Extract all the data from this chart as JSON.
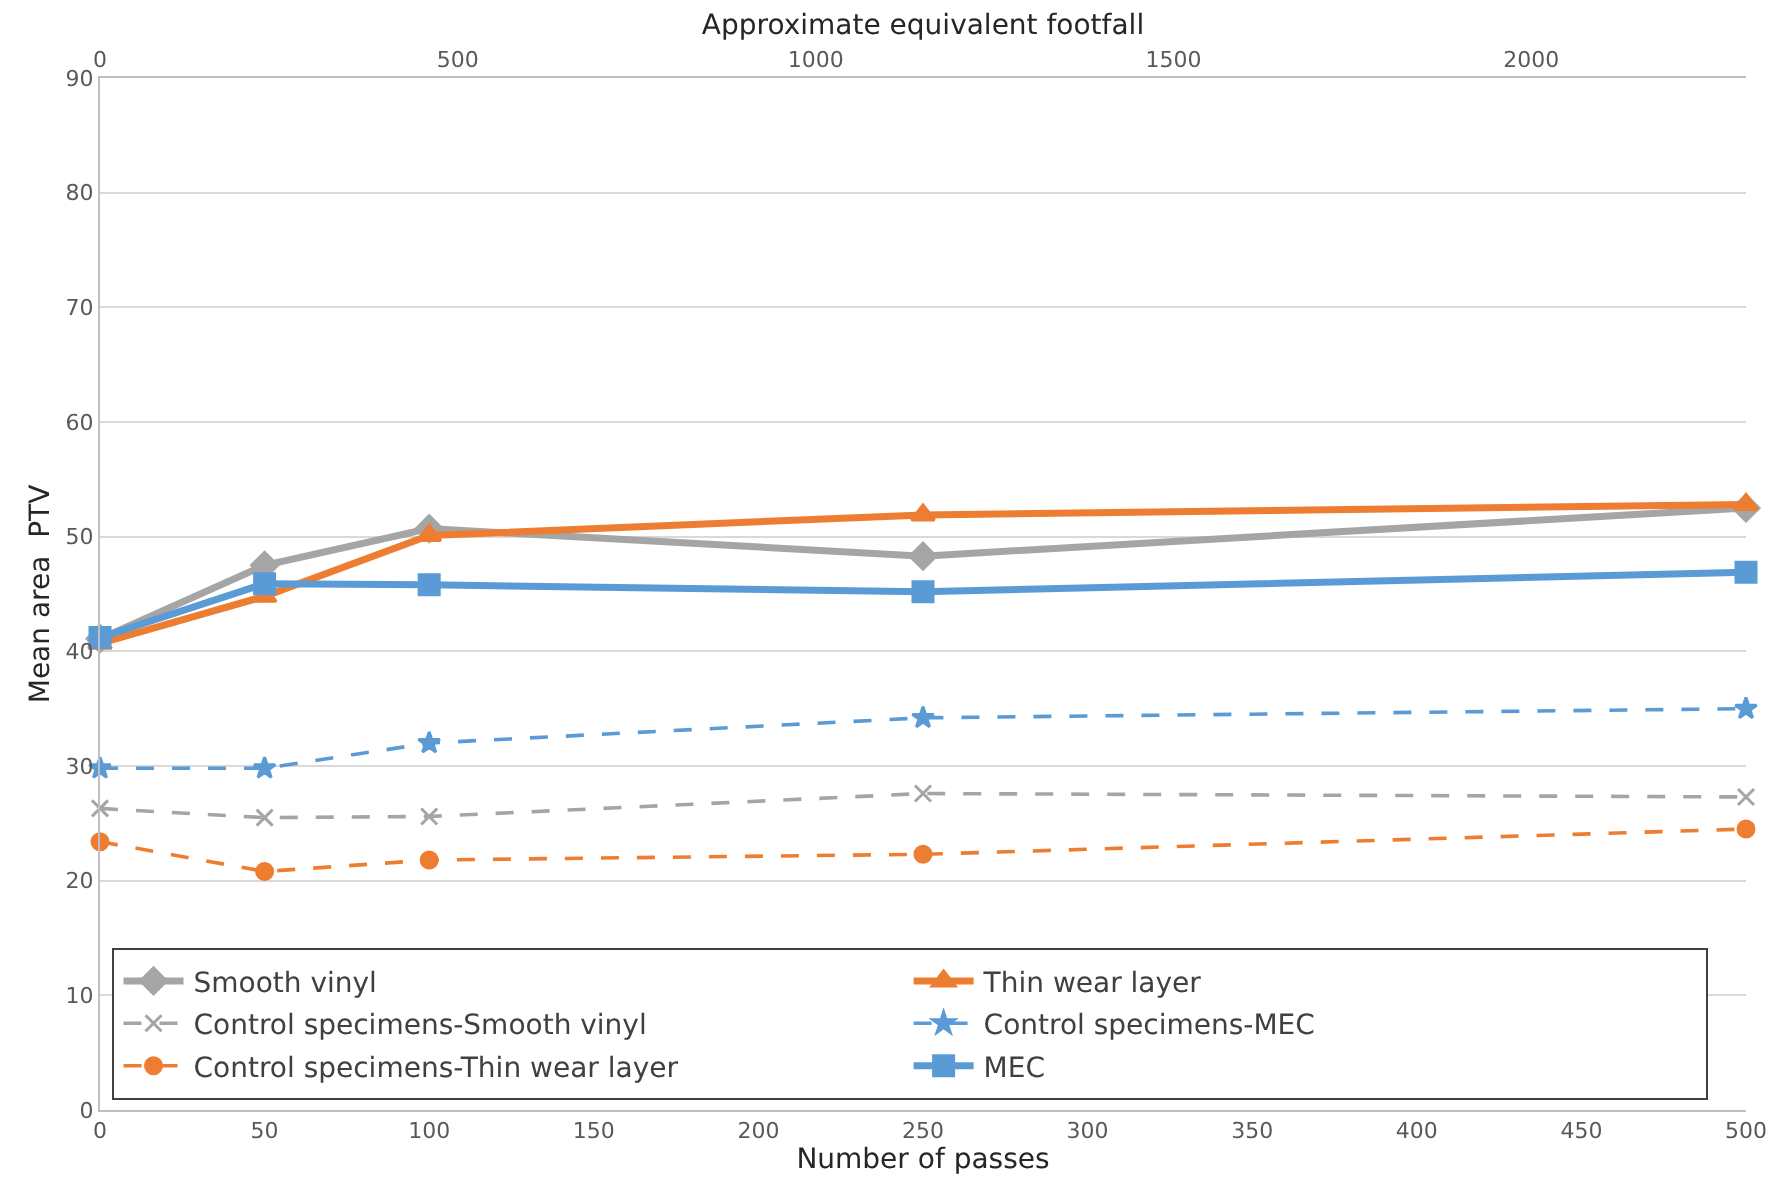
{
  "chart_data": {
    "type": "line",
    "xlabel": "Number of passes",
    "ylabel": "Mean area  PTV",
    "x2label": "Approximate equivalent footfall",
    "x": [
      0,
      50,
      100,
      250,
      500
    ],
    "xlim": [
      0,
      500
    ],
    "xticks": [
      0,
      50,
      100,
      150,
      200,
      250,
      300,
      350,
      400,
      450,
      500
    ],
    "x2lim": [
      0,
      2300
    ],
    "x2ticks": [
      0,
      500,
      1000,
      1500,
      2000
    ],
    "ylim": [
      0,
      90
    ],
    "yticks": [
      0,
      10,
      20,
      30,
      40,
      50,
      60,
      70,
      80,
      90
    ],
    "grid": "y",
    "legend": "bottom",
    "series": [
      {
        "name": "Smooth vinyl",
        "color": "#a5a5a5",
        "marker": "diamond",
        "line_style": "solid",
        "values": [
          41.1,
          47.5,
          50.7,
          48.3,
          52.5
        ]
      },
      {
        "name": "Thin wear layer",
        "color": "#ed7d31",
        "marker": "triangle",
        "line_style": "solid",
        "values": [
          40.7,
          44.8,
          50.1,
          51.9,
          52.8
        ]
      },
      {
        "name": "Control specimens-Smooth vinyl",
        "color": "#a5a5a5",
        "marker": "cross",
        "line_style": "dashed",
        "values": [
          26.3,
          25.5,
          25.6,
          27.6,
          27.3
        ]
      },
      {
        "name": "Control specimens-MEC",
        "color": "#5b9bd5",
        "marker": "star",
        "line_style": "dashed",
        "values": [
          29.8,
          29.8,
          32.0,
          34.2,
          35.0
        ]
      },
      {
        "name": "Control specimens-Thin wear layer",
        "color": "#ed7d31",
        "marker": "circle",
        "line_style": "dashed",
        "values": [
          23.4,
          20.8,
          21.8,
          22.3,
          24.5
        ]
      },
      {
        "name": "MEC",
        "color": "#5b9bd5",
        "marker": "square",
        "line_style": "solid",
        "values": [
          41.2,
          45.9,
          45.8,
          45.2,
          46.9
        ]
      }
    ]
  }
}
